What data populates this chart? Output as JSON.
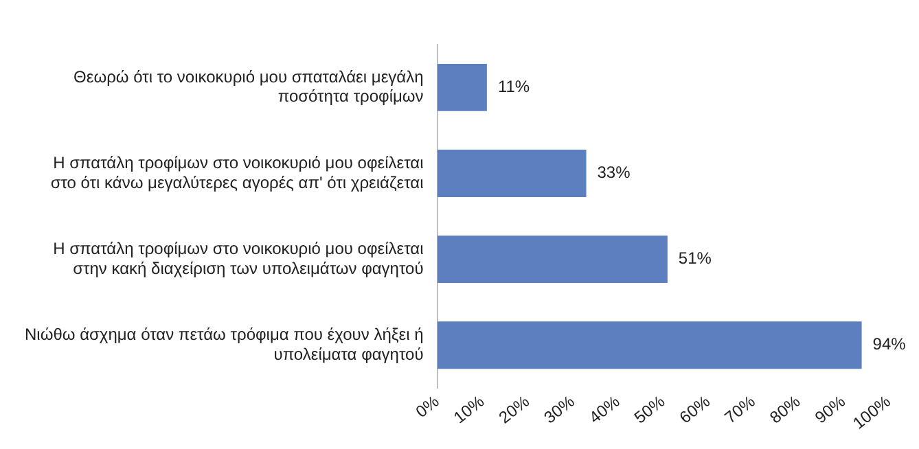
{
  "chart_data": {
    "type": "bar",
    "orientation": "horizontal",
    "categories": [
      "Θεωρώ ότι το νοικοκυριό μου σπαταλάει μεγάλη ποσότητα τροφίμων",
      "Η σπατάλη τροφίμων στο νοικοκυριό μου οφείλεται στο ότι κάνω μεγαλύτερες αγορές απ' ότι χρειάζεται",
      "Η σπατάλη τροφίμων στο νοικοκυριό μου οφείλεται στην κακή διαχείριση των υπολειμάτων φαγητού",
      "Νιώθω άσχημα όταν πετάω τρόφιμα που έχουν λήξει ή υπολείματα φαγητού"
    ],
    "values": [
      11,
      33,
      51,
      94
    ],
    "value_labels": [
      "11%",
      "33%",
      "51%",
      "94%"
    ],
    "color": "#5b7fbf",
    "xlim": [
      0,
      100
    ],
    "xticks": [
      {
        "value": 0,
        "label": "0%"
      },
      {
        "value": 10,
        "label": "10%"
      },
      {
        "value": 20,
        "label": "20%"
      },
      {
        "value": 30,
        "label": "30%"
      },
      {
        "value": 40,
        "label": "40%"
      },
      {
        "value": 50,
        "label": "50%"
      },
      {
        "value": 60,
        "label": "60%"
      },
      {
        "value": 70,
        "label": "70%"
      },
      {
        "value": 80,
        "label": "80%"
      },
      {
        "value": 90,
        "label": "90%"
      },
      {
        "value": 100,
        "label": "100%"
      }
    ],
    "grid": false,
    "legend": false
  }
}
